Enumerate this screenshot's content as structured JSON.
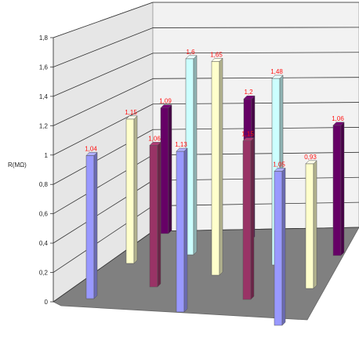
{
  "chart_data": {
    "type": "bar",
    "ylabel": "R(MΩ)",
    "ylim": [
      0,
      1.8
    ],
    "y_ticks": [
      "0",
      "0,2",
      "0,4",
      "0,6",
      "0,8",
      "1",
      "1,2",
      "1,4",
      "1,6",
      "1,8"
    ],
    "grid": true,
    "series": [
      {
        "name": "",
        "color": "#9999ff",
        "values": [
          1.04,
          1.13,
          1.05
        ]
      },
      {
        "name": "",
        "color": "#993366",
        "values": [
          1.06,
          1.15
        ]
      },
      {
        "name": "",
        "color": "#ffffcc",
        "values": [
          1.15,
          1.65,
          0.93
        ]
      },
      {
        "name": "",
        "color": "#ccffff",
        "values": [
          1.6,
          1.48
        ]
      },
      {
        "name": "",
        "color": "#660066",
        "values": [
          1.09,
          1.2,
          1.06
        ]
      }
    ],
    "bars": [
      {
        "label": "1,04",
        "value": 1.04,
        "color": "#9999ff"
      },
      {
        "label": "1,15",
        "value": 1.15,
        "color": "#ffffcc"
      },
      {
        "label": "1,06",
        "value": 1.06,
        "color": "#993366"
      },
      {
        "label": "1,09",
        "value": 1.09,
        "color": "#660066"
      },
      {
        "label": "1,13",
        "value": 1.13,
        "color": "#9999ff"
      },
      {
        "label": "1,6",
        "value": 1.6,
        "color": "#ccffff"
      },
      {
        "label": "1,65",
        "value": 1.65,
        "color": "#ffffcc"
      },
      {
        "label": "1,2",
        "value": 1.2,
        "color": "#660066"
      },
      {
        "label": "1,15",
        "value": 1.15,
        "color": "#993366"
      },
      {
        "label": "1,48",
        "value": 1.48,
        "color": "#ccffff"
      },
      {
        "label": "1,05",
        "value": 1.05,
        "color": "#9999ff"
      },
      {
        "label": "0,93",
        "value": 0.93,
        "color": "#ffffcc"
      },
      {
        "label": "1,06",
        "value": 1.06,
        "color": "#660066"
      }
    ],
    "colors": {
      "floor": "#808080",
      "back_wall": "#f2f2f2",
      "side_wall": "#e6e6e6",
      "gridline": "#333333",
      "label_text": "#ff1010"
    }
  }
}
